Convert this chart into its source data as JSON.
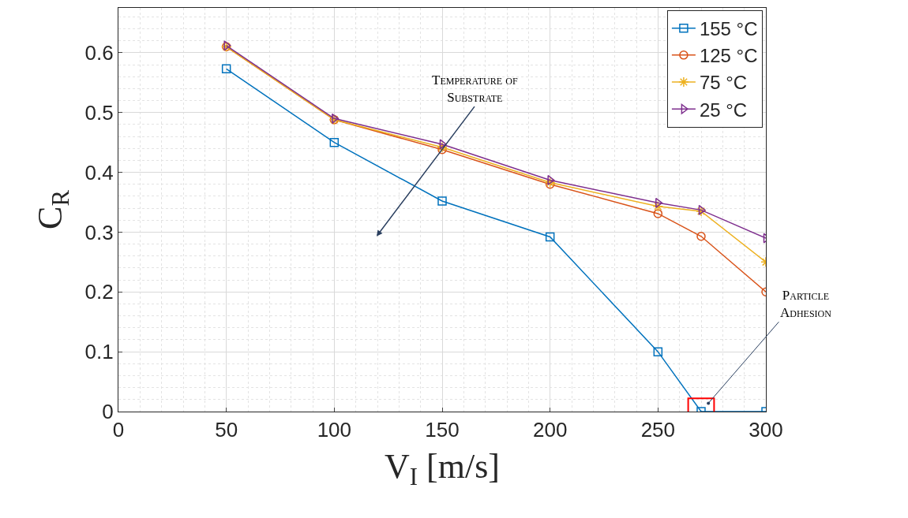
{
  "chart_data": {
    "type": "line",
    "xlabel": "V$_{I}$ [m/s]",
    "ylabel": "C$_{R}$",
    "x": [
      50,
      100,
      150,
      200,
      250,
      270,
      300
    ],
    "series": [
      {
        "name": "155 °C",
        "color": "#0072bd",
        "marker": "square",
        "values": [
          0.573,
          0.45,
          0.352,
          0.292,
          0.1,
          0,
          0
        ]
      },
      {
        "name": "125 °C",
        "color": "#d95319",
        "marker": "circle",
        "values": [
          0.61,
          0.488,
          0.438,
          0.38,
          0.331,
          0.293,
          0.2
        ]
      },
      {
        "name": "75 °C",
        "color": "#edb120",
        "marker": "cross",
        "values": [
          0.61,
          0.488,
          0.442,
          0.383,
          0.343,
          0.335,
          0.25
        ]
      },
      {
        "name": "25 °C",
        "color": "#7e2f8e",
        "marker": "triangle",
        "values": [
          0.612,
          0.49,
          0.447,
          0.387,
          0.349,
          0.337,
          0.29
        ]
      }
    ],
    "xlim": [
      0,
      300
    ],
    "xticks": [
      0,
      50,
      100,
      150,
      200,
      250,
      300
    ],
    "ylim": [
      0,
      0.675
    ],
    "yticks": [
      0,
      0.1,
      0.2,
      0.3,
      0.4,
      0.5,
      0.6
    ],
    "grid": true,
    "legend": "top right",
    "annotations": [
      "Temperature of\nSubstrate",
      {
        "text": "Particle\nAdhesion",
        "x": 270,
        "y": 0
      }
    ]
  }
}
